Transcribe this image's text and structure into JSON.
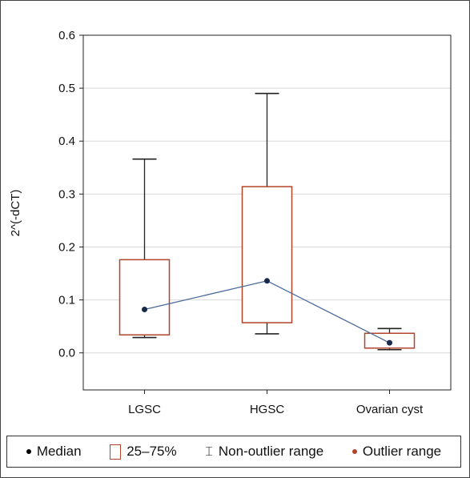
{
  "chart_data": {
    "type": "box",
    "ylabel": "2^(-dCT)",
    "xlabel": "",
    "ylim": [
      -0.07,
      0.6
    ],
    "yticks": [
      "0.0",
      "0.1",
      "0.2",
      "0.3",
      "0.4",
      "0.5",
      "0.6"
    ],
    "grid": "horizontal",
    "categories": [
      "LGSC",
      "HGSC",
      "Ovarian cyst"
    ],
    "boxes": [
      {
        "category": "LGSC",
        "min": 0.029,
        "q1": 0.034,
        "median": 0.082,
        "q3": 0.176,
        "max": 0.366
      },
      {
        "category": "HGSC",
        "min": 0.036,
        "q1": 0.057,
        "median": 0.136,
        "q3": 0.314,
        "max": 0.49
      },
      {
        "category": "Ovarian cyst",
        "min": 0.006,
        "q1": 0.009,
        "median": 0.019,
        "q3": 0.037,
        "max": 0.046
      }
    ],
    "legend_position": "bottom"
  },
  "legend": {
    "median": "Median",
    "iqr": "25–75%",
    "range": "Non-outlier range",
    "outlier": "Outlier range"
  },
  "colors": {
    "box": "#b0452a",
    "median_line": "#4a6a9a",
    "median_point": "#1b2a4a",
    "whisker": "#222222",
    "grid": "#d9d9d9"
  }
}
